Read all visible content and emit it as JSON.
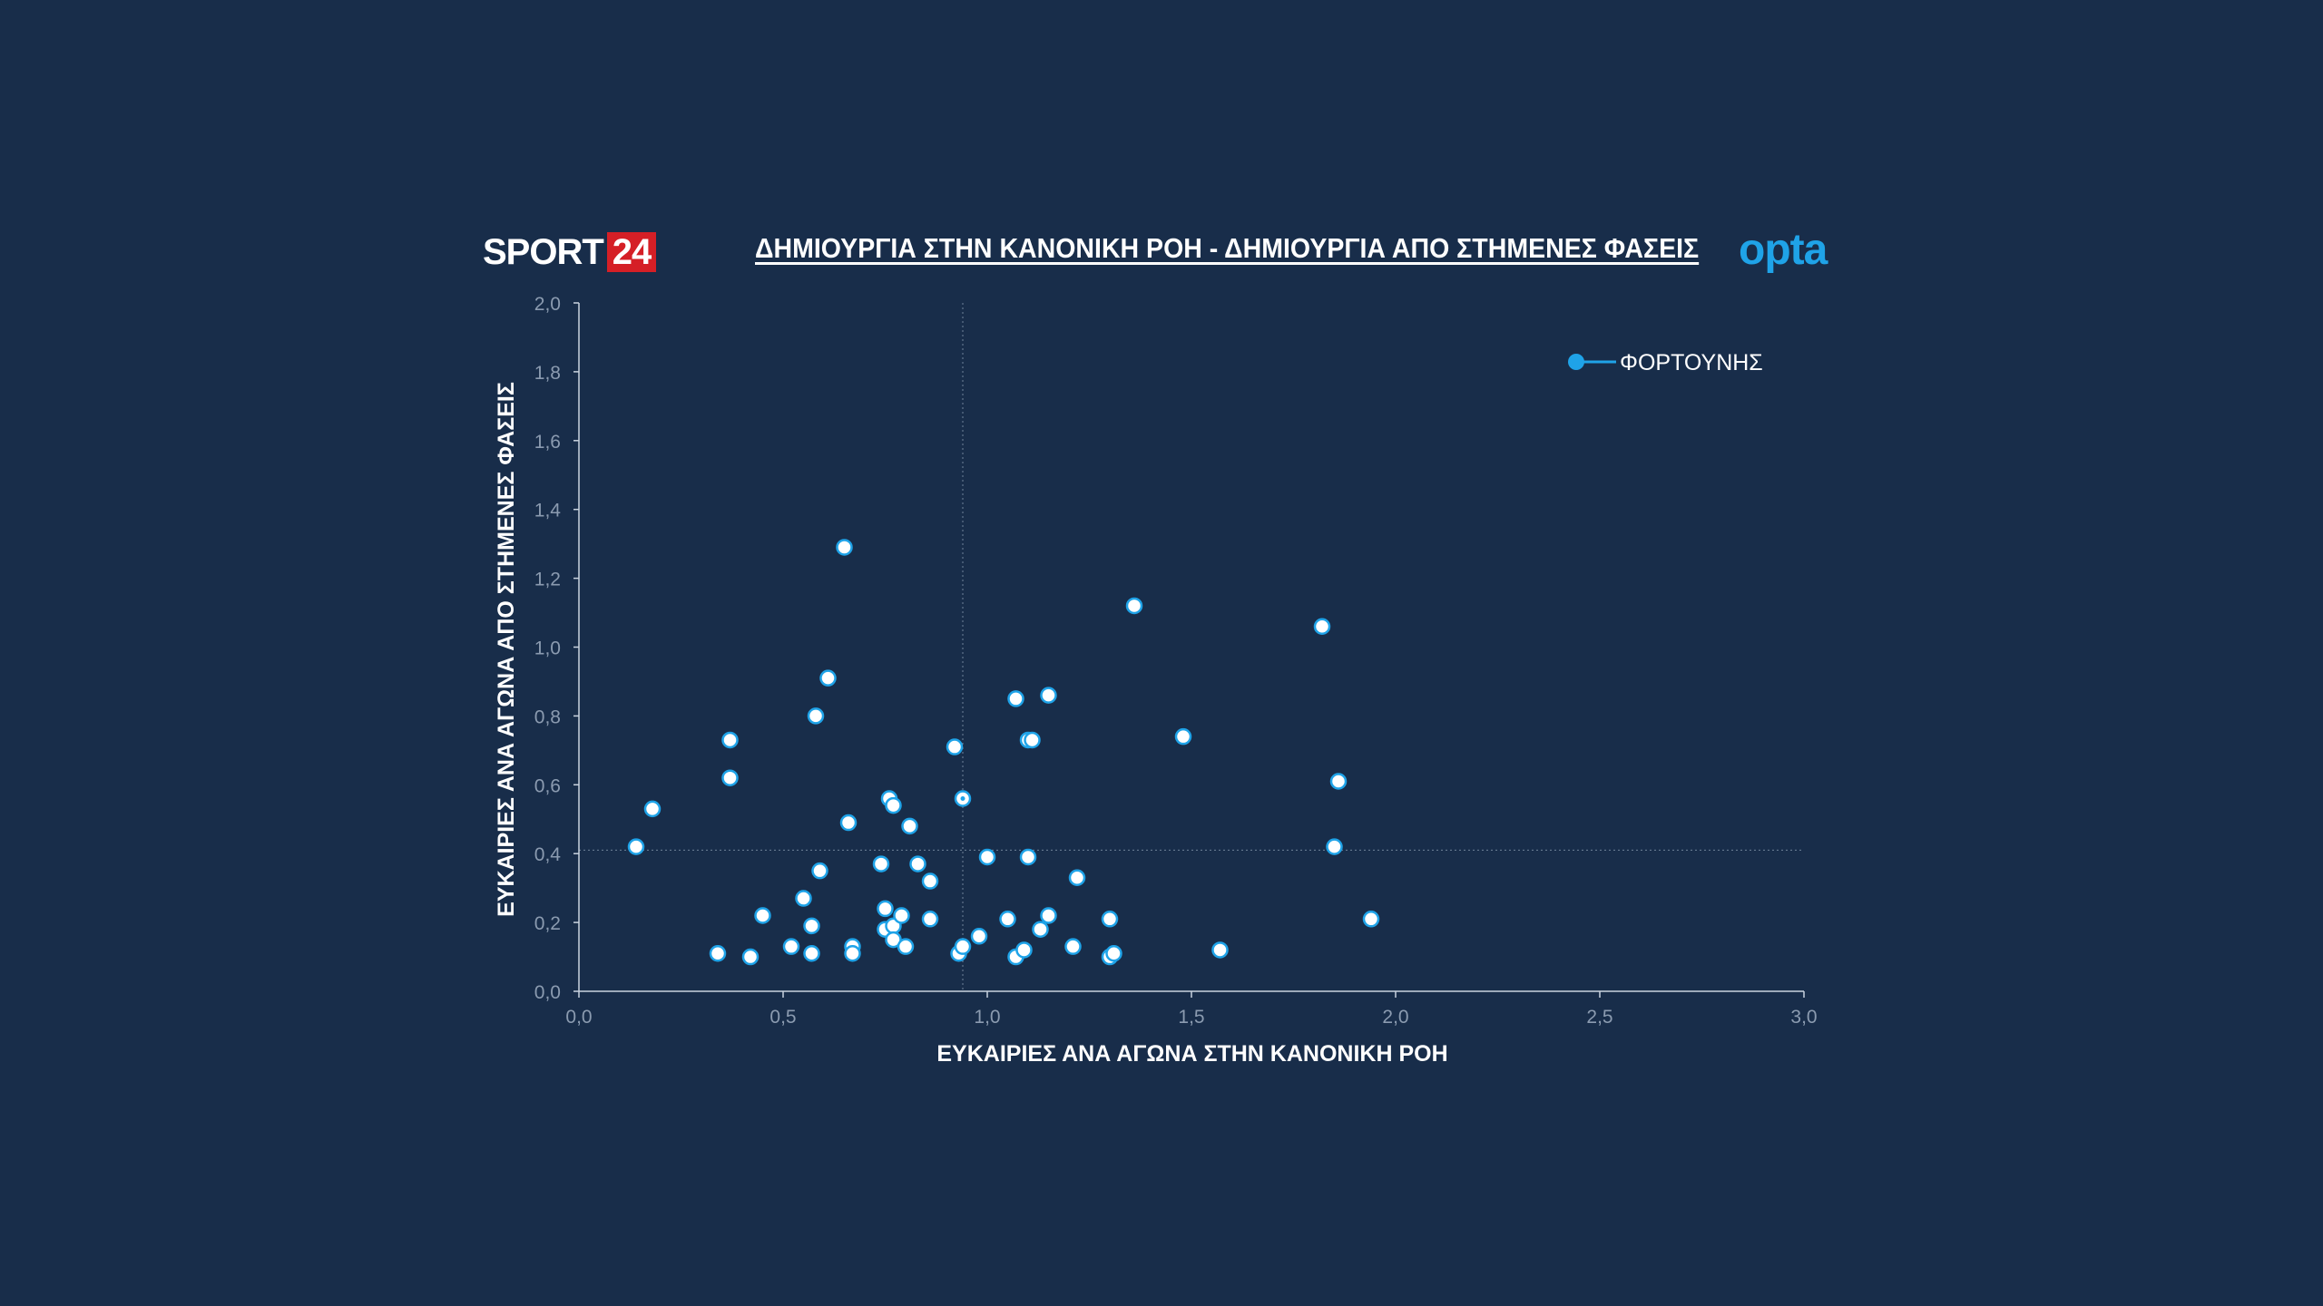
{
  "header": {
    "brand_text": "SPORT",
    "brand_number": "24",
    "title": "ΔΗΜΙΟΥΡΓΙΑ ΣΤΗΝ ΚΑΝΟΝΙΚΗ ΡΟΗ - ΔΗΜΙΟΥΡΓΙΑ ΑΠΟ ΣΤΗΜΕΝΕΣ ΦΑΣΕΙΣ",
    "partner_logo": "opta"
  },
  "colors": {
    "background": "#182d4a",
    "point_fill": "#ffffff",
    "point_stroke": "#1fa3e8",
    "legend_marker": "#1fa3e8",
    "axis": "#c9d3df",
    "tick_text": "#8b9bb0",
    "reference_line": "#6f8299"
  },
  "chart_data": {
    "type": "scatter",
    "xlabel": "ΕΥΚΑΙΡΙΕΣ ΑΝΑ ΑΓΩΝΑ ΣΤΗΝ ΚΑΝΟΝΙΚΗ ΡΟΗ",
    "ylabel": "ΕΥΚΑΙΡΙΕΣ ΑΝΑ ΑΓΩΝΑ ΑΠΟ ΣΤΗΜΕΝΕΣ ΦΑΣΕΙΣ",
    "xlim": [
      0,
      3
    ],
    "ylim": [
      0,
      2
    ],
    "x_ticks": [
      "0,0",
      "0,5",
      "1,0",
      "1,5",
      "2,0",
      "2,5",
      "3,0"
    ],
    "x_tick_values": [
      0,
      0.5,
      1.0,
      1.5,
      2.0,
      2.5,
      3.0
    ],
    "y_ticks": [
      "0,0",
      "0,2",
      "0,4",
      "0,6",
      "0,8",
      "1,0",
      "1,2",
      "1,4",
      "1,6",
      "1,8",
      "2,0"
    ],
    "y_tick_values": [
      0,
      0.2,
      0.4,
      0.6,
      0.8,
      1.0,
      1.2,
      1.4,
      1.6,
      1.8,
      2.0
    ],
    "reference_lines": {
      "x": 0.94,
      "y": 0.41
    },
    "grid": false,
    "legend": {
      "position": "top-right",
      "entries": [
        "ΦΟΡΤΟΥΝΗΣ"
      ]
    },
    "highlighted_point": {
      "name": "ΦΟΡΤΟΥΝΗΣ",
      "x": 0.94,
      "y": 0.56
    },
    "series": [
      {
        "name": "ΦΟΡΤΟΥΝΗΣ",
        "points": [
          [
            0.14,
            0.42
          ],
          [
            0.18,
            0.53
          ],
          [
            0.34,
            0.11
          ],
          [
            0.37,
            0.73
          ],
          [
            0.37,
            0.62
          ],
          [
            0.42,
            0.1
          ],
          [
            0.45,
            0.22
          ],
          [
            0.52,
            0.13
          ],
          [
            0.55,
            0.27
          ],
          [
            0.57,
            0.11
          ],
          [
            0.57,
            0.19
          ],
          [
            0.58,
            0.8
          ],
          [
            0.59,
            0.35
          ],
          [
            0.61,
            0.91
          ],
          [
            0.65,
            1.29
          ],
          [
            0.66,
            0.49
          ],
          [
            0.67,
            0.13
          ],
          [
            0.67,
            0.11
          ],
          [
            0.74,
            0.37
          ],
          [
            0.75,
            0.24
          ],
          [
            0.75,
            0.18
          ],
          [
            0.76,
            0.56
          ],
          [
            0.77,
            0.54
          ],
          [
            0.77,
            0.19
          ],
          [
            0.77,
            0.15
          ],
          [
            0.79,
            0.22
          ],
          [
            0.8,
            0.13
          ],
          [
            0.81,
            0.48
          ],
          [
            0.83,
            0.37
          ],
          [
            0.86,
            0.21
          ],
          [
            0.86,
            0.32
          ],
          [
            0.92,
            0.71
          ],
          [
            0.93,
            0.11
          ],
          [
            0.94,
            0.13
          ],
          [
            0.94,
            0.56
          ],
          [
            0.98,
            0.16
          ],
          [
            1.0,
            0.39
          ],
          [
            1.05,
            0.21
          ],
          [
            1.07,
            0.85
          ],
          [
            1.07,
            0.1
          ],
          [
            1.09,
            0.12
          ],
          [
            1.1,
            0.39
          ],
          [
            1.1,
            0.73
          ],
          [
            1.11,
            0.73
          ],
          [
            1.13,
            0.18
          ],
          [
            1.15,
            0.22
          ],
          [
            1.15,
            0.86
          ],
          [
            1.21,
            0.13
          ],
          [
            1.22,
            0.33
          ],
          [
            1.3,
            0.21
          ],
          [
            1.3,
            0.1
          ],
          [
            1.31,
            0.11
          ],
          [
            1.36,
            1.12
          ],
          [
            1.48,
            0.74
          ],
          [
            1.57,
            0.12
          ],
          [
            1.82,
            1.06
          ],
          [
            1.85,
            0.42
          ],
          [
            1.86,
            0.61
          ],
          [
            1.94,
            0.21
          ]
        ]
      }
    ]
  }
}
